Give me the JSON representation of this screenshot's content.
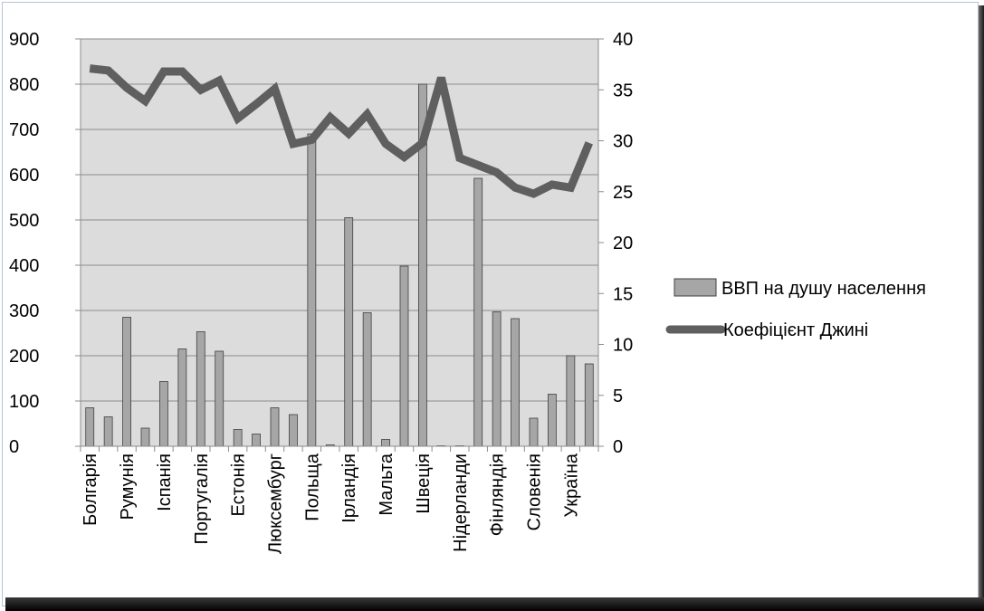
{
  "chart_data": {
    "type": "bar+line",
    "title": "",
    "categories": [
      "Болгарія",
      "",
      "Румунія",
      "",
      "Іспанія",
      "",
      "Португалія",
      "",
      "Естонія",
      "",
      "Люксембург",
      "",
      "Польща",
      "",
      "Ірландія",
      "",
      "Мальта",
      "",
      "Швеція",
      "",
      "Нідерланди",
      "",
      "Фінляндія",
      "",
      "Словенія",
      "",
      "Україна",
      ""
    ],
    "series": [
      {
        "name": "ВВП на душу населення",
        "type": "bar",
        "axis": "left",
        "color": "#a6a6a6",
        "values": [
          85,
          65,
          285,
          40,
          143,
          215,
          253,
          210,
          37,
          27,
          85,
          70,
          690,
          3,
          505,
          295,
          15,
          398,
          800,
          1,
          1,
          592,
          297,
          282,
          62,
          115,
          200,
          182
        ]
      },
      {
        "name": "Коефіцієнт Джині",
        "type": "line",
        "axis": "right",
        "color": "#5f5f5f",
        "values": [
          37.1,
          36.9,
          35.2,
          33.9,
          36.8,
          36.8,
          35.0,
          35.9,
          32.2,
          33.6,
          35.1,
          29.7,
          30.1,
          32.3,
          30.7,
          32.6,
          29.7,
          28.4,
          29.8,
          36.2,
          28.3,
          27.6,
          26.9,
          25.4,
          24.8,
          25.7,
          25.4,
          29.8
        ]
      }
    ],
    "y_left": {
      "min": 0,
      "max": 900,
      "step": 100,
      "ticks": [
        "0",
        "100",
        "200",
        "300",
        "400",
        "500",
        "600",
        "700",
        "800",
        "900"
      ]
    },
    "y_right": {
      "min": 0,
      "max": 40,
      "step": 5,
      "ticks": [
        "0",
        "5",
        "10",
        "15",
        "20",
        "25",
        "30",
        "35",
        "40"
      ]
    },
    "grid": true,
    "legend": {
      "position": "right",
      "entries": [
        "ВВП на душу населення",
        "Коефіцієнт Джині"
      ]
    },
    "plot_background": "#dcdcdc"
  }
}
